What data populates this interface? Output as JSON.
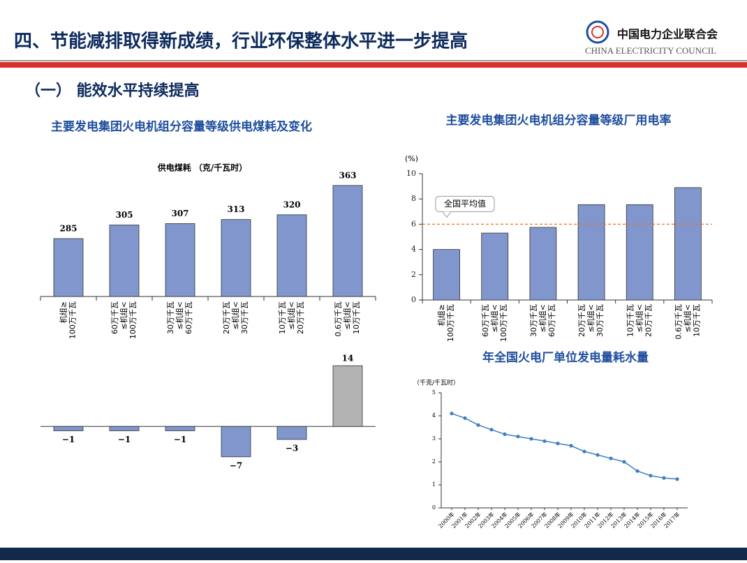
{
  "header": {
    "title": "四、节能减排取得新成绩，行业环保整体水平进一步提高",
    "org_cn": "中国电力企业联合会",
    "org_en": "CHINA ELECTRICITY COUNCIL"
  },
  "section": "（一） 能效水平持续提高",
  "chart_data": [
    {
      "type": "bar",
      "title": "主要发电集团火电机组分容量等级供电煤耗及变化",
      "ylabel": "供电煤耗 （克/千瓦时）",
      "categories": [
        [
          "机组≥",
          "100万千瓦"
        ],
        [
          "60万千瓦",
          "≤机组<",
          "100万千瓦"
        ],
        [
          "30万千瓦",
          "≤机组<",
          "60万千瓦"
        ],
        [
          "20万千瓦",
          "≤机组<",
          "30万千瓦"
        ],
        [
          "10万千瓦",
          "≤机组<",
          "20万千瓦"
        ],
        [
          "0.6万千瓦",
          "≤机组<",
          "10万千瓦"
        ]
      ],
      "values": [
        285,
        305,
        307,
        313,
        320,
        363
      ],
      "color": "#8096cc",
      "ylim": [
        200,
        370
      ]
    },
    {
      "type": "bar",
      "values": [
        -1,
        -1,
        -1,
        -7,
        -3,
        14
      ],
      "value_labels": [
        "−1",
        "−1",
        "−1",
        "−7",
        "−3",
        "14"
      ],
      "colors": [
        "#8096cc",
        "#8096cc",
        "#8096cc",
        "#8096cc",
        "#8096cc",
        "#b3b3b3"
      ],
      "ylim": [
        -8,
        15
      ]
    },
    {
      "type": "bar",
      "title": "主要发电集团火电机组分容量等级厂用电率",
      "ylabel": "(%)",
      "categories": [
        [
          "机组≥",
          "100万千瓦"
        ],
        [
          "60万千瓦",
          "≤机组<",
          "100万千瓦"
        ],
        [
          "30万千瓦",
          "≤机组<",
          "60万千瓦"
        ],
        [
          "20万千瓦",
          "≤机组<",
          "30万千瓦"
        ],
        [
          "10万千瓦",
          "≤机组<",
          "20万千瓦"
        ],
        [
          "0.6万千瓦",
          "≤机组<",
          "10万千瓦"
        ]
      ],
      "values": [
        4.0,
        5.3,
        5.75,
        7.55,
        7.55,
        8.9
      ],
      "color": "#8096cc",
      "ylim": [
        0,
        10
      ],
      "yticks": [
        0,
        2,
        4,
        6,
        8,
        10
      ],
      "reference_line": {
        "value": 6,
        "label": "全国平均值",
        "color": "#e87722"
      }
    },
    {
      "type": "line",
      "title": "年全国火电厂单位发电量耗水量",
      "ylabel": "（千克/千瓦时）",
      "categories": [
        "2000年",
        "2001年",
        "2002年",
        "2003年",
        "2004年",
        "2005年",
        "2006年",
        "2007年",
        "2008年",
        "2009年",
        "2010年",
        "2011年",
        "2012年",
        "2013年",
        "2014年",
        "2015年",
        "2016年",
        "2017年"
      ],
      "values": [
        4.1,
        3.9,
        3.6,
        3.4,
        3.2,
        3.1,
        3.0,
        2.9,
        2.8,
        2.7,
        2.45,
        2.3,
        2.15,
        2.0,
        1.6,
        1.4,
        1.3,
        1.25
      ],
      "color": "#3f7fc1",
      "ylim": [
        0,
        5
      ],
      "yticks": [
        0,
        1,
        2,
        3,
        4,
        5
      ]
    }
  ]
}
